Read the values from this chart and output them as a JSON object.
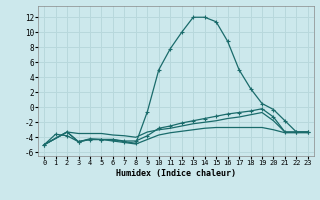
{
  "title": "",
  "xlabel": "Humidex (Indice chaleur)",
  "background_color": "#cce8ec",
  "grid_color": "#b8d8dc",
  "line_color": "#1a6b6b",
  "xlim": [
    -0.5,
    23.5
  ],
  "ylim": [
    -6.5,
    13.5
  ],
  "xticks": [
    0,
    1,
    2,
    3,
    4,
    5,
    6,
    7,
    8,
    9,
    10,
    11,
    12,
    13,
    14,
    15,
    16,
    17,
    18,
    19,
    20,
    21,
    22,
    23
  ],
  "yticks": [
    -6,
    -4,
    -2,
    0,
    2,
    4,
    6,
    8,
    10,
    12
  ],
  "line1_x": [
    0,
    1,
    2,
    3,
    4,
    5,
    6,
    7,
    8,
    9,
    10,
    11,
    12,
    13,
    14,
    15,
    16,
    17,
    18,
    19,
    20,
    21,
    22,
    23
  ],
  "line1_y": [
    -5.0,
    -3.6,
    -3.8,
    -4.6,
    -4.2,
    -4.3,
    -4.3,
    -4.6,
    -4.8,
    -0.6,
    5.0,
    7.8,
    10.0,
    12.0,
    12.0,
    11.4,
    8.8,
    5.0,
    2.5,
    0.5,
    -0.3,
    -1.8,
    -3.3,
    -3.3
  ],
  "line2_x": [
    0,
    2,
    3,
    4,
    5,
    6,
    7,
    8,
    9,
    10,
    11,
    12,
    13,
    14,
    15,
    16,
    17,
    18,
    19,
    20,
    21,
    22,
    23
  ],
  "line2_y": [
    -5.0,
    -3.3,
    -4.6,
    -4.3,
    -4.3,
    -4.3,
    -4.5,
    -4.5,
    -3.8,
    -2.8,
    -2.5,
    -2.1,
    -1.8,
    -1.5,
    -1.2,
    -0.9,
    -0.7,
    -0.5,
    -0.2,
    -1.3,
    -3.3,
    -3.3,
    -3.3
  ],
  "line3_x": [
    0,
    2,
    3,
    4,
    5,
    6,
    7,
    8,
    9,
    10,
    11,
    12,
    13,
    14,
    15,
    16,
    17,
    18,
    19,
    20,
    21,
    22,
    23
  ],
  "line3_y": [
    -5.0,
    -3.3,
    -4.6,
    -4.3,
    -4.3,
    -4.5,
    -4.7,
    -4.9,
    -4.3,
    -3.7,
    -3.4,
    -3.2,
    -3.0,
    -2.8,
    -2.7,
    -2.7,
    -2.7,
    -2.7,
    -2.7,
    -3.0,
    -3.4,
    -3.4,
    -3.4
  ],
  "line4_x": [
    0,
    2,
    3,
    4,
    5,
    6,
    7,
    8,
    9,
    10,
    11,
    12,
    13,
    14,
    15,
    16,
    17,
    18,
    19,
    20,
    21,
    22,
    23
  ],
  "line4_y": [
    -5.0,
    -3.3,
    -3.5,
    -3.5,
    -3.5,
    -3.7,
    -3.8,
    -4.0,
    -3.3,
    -3.0,
    -2.8,
    -2.5,
    -2.2,
    -2.0,
    -1.8,
    -1.5,
    -1.3,
    -1.0,
    -0.7,
    -1.8,
    -3.3,
    -3.3,
    -3.3
  ]
}
